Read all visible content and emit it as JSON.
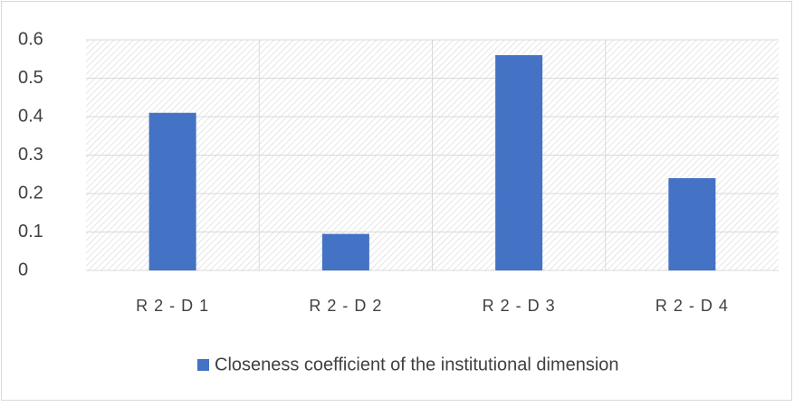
{
  "chart_data": {
    "type": "bar",
    "categories": [
      "R 2 - D 1",
      "R 2 - D 2",
      "R 2 - D 3",
      "R 2 - D 4"
    ],
    "series": [
      {
        "name": "Closeness coefficient of the institutional dimension",
        "color": "#4472c4",
        "values": [
          0.41,
          0.095,
          0.56,
          0.24
        ]
      }
    ],
    "ylim": [
      0,
      0.6
    ],
    "yticks": [
      0,
      0.1,
      0.2,
      0.3,
      0.4,
      0.5,
      0.6
    ],
    "grid": true,
    "legend": "bottom"
  }
}
